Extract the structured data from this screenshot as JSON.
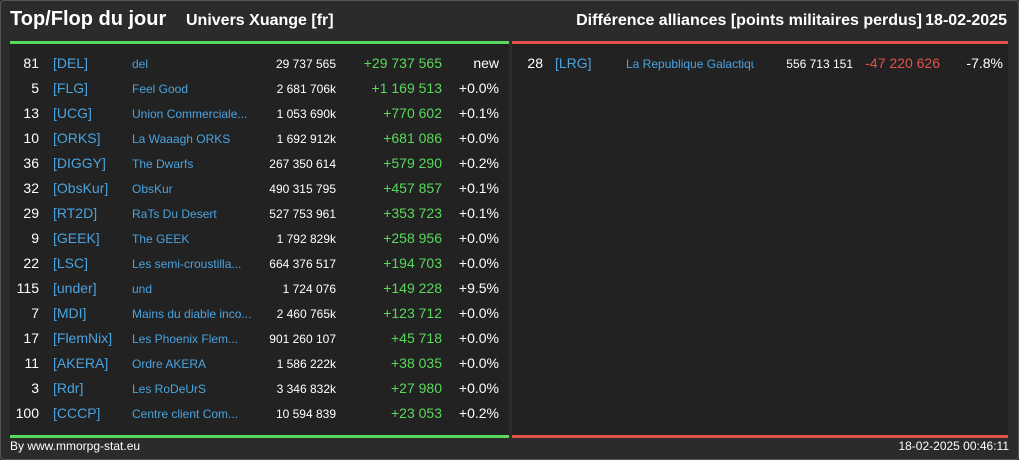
{
  "header": {
    "title": "Top/Flop du jour",
    "subtitle": "Univers Xuange [fr]",
    "right_title": "Différence alliances [points militaires perdus]",
    "date": "18-02-2025"
  },
  "top": [
    {
      "rank": "81",
      "tag": "[DEL]",
      "name": "del",
      "points": "29 737 565",
      "diff": "+29 737 565",
      "pct": "new"
    },
    {
      "rank": "5",
      "tag": "[FLG]",
      "name": "Feel Good",
      "points": "2 681 706k",
      "diff": "+1 169 513",
      "pct": "+0.0%"
    },
    {
      "rank": "13",
      "tag": "[UCG]",
      "name": "Union Commerciale...",
      "points": "1 053 690k",
      "diff": "+770 602",
      "pct": "+0.1%"
    },
    {
      "rank": "10",
      "tag": "[ORKS]",
      "name": "La Waaagh ORKS",
      "points": "1 692 912k",
      "diff": "+681 086",
      "pct": "+0.0%"
    },
    {
      "rank": "36",
      "tag": "[DIGGY]",
      "name": "The Dwarfs",
      "points": "267 350 614",
      "diff": "+579 290",
      "pct": "+0.2%"
    },
    {
      "rank": "32",
      "tag": "[ObsKur]",
      "name": "ObsKur",
      "points": "490 315 795",
      "diff": "+457 857",
      "pct": "+0.1%"
    },
    {
      "rank": "29",
      "tag": "[RT2D]",
      "name": "RaTs Du Desert",
      "points": "527 753 961",
      "diff": "+353 723",
      "pct": "+0.1%"
    },
    {
      "rank": "9",
      "tag": "[GEEK]",
      "name": "The GEEK",
      "points": "1 792 829k",
      "diff": "+258 956",
      "pct": "+0.0%"
    },
    {
      "rank": "22",
      "tag": "[LSC]",
      "name": "Les semi-croustilla...",
      "points": "664 376 517",
      "diff": "+194 703",
      "pct": "+0.0%"
    },
    {
      "rank": "115",
      "tag": "[under]",
      "name": "und",
      "points": "1 724 076",
      "diff": "+149 228",
      "pct": "+9.5%"
    },
    {
      "rank": "7",
      "tag": "[MDI]",
      "name": "Mains du diable inco...",
      "points": "2 460 765k",
      "diff": "+123 712",
      "pct": "+0.0%"
    },
    {
      "rank": "17",
      "tag": "[FlemNix]",
      "name": "Les Phoenix Flem...",
      "points": "901 260 107",
      "diff": "+45 718",
      "pct": "+0.0%"
    },
    {
      "rank": "11",
      "tag": "[AKERA]",
      "name": "Ordre AKERA",
      "points": "1 586 222k",
      "diff": "+38 035",
      "pct": "+0.0%"
    },
    {
      "rank": "3",
      "tag": "[Rdr]",
      "name": "Les RoDeUrS",
      "points": "3 346 832k",
      "diff": "+27 980",
      "pct": "+0.0%"
    },
    {
      "rank": "100",
      "tag": "[CCCP]",
      "name": "Centre client Com...",
      "points": "10 594 839",
      "diff": "+23 053",
      "pct": "+0.2%"
    }
  ],
  "flop": [
    {
      "rank": "28",
      "tag": "[LRG]",
      "name": "La Republique Galactique",
      "points": "556 713 151",
      "diff": "-47 220 626",
      "pct": "-7.8%"
    }
  ],
  "footer": {
    "left": "By www.mmorpg-stat.eu",
    "right": "18-02-2025 00:46:11"
  },
  "colors": {
    "positive": "#59d95b",
    "negative": "#e0524a",
    "link": "#4aa3df"
  }
}
